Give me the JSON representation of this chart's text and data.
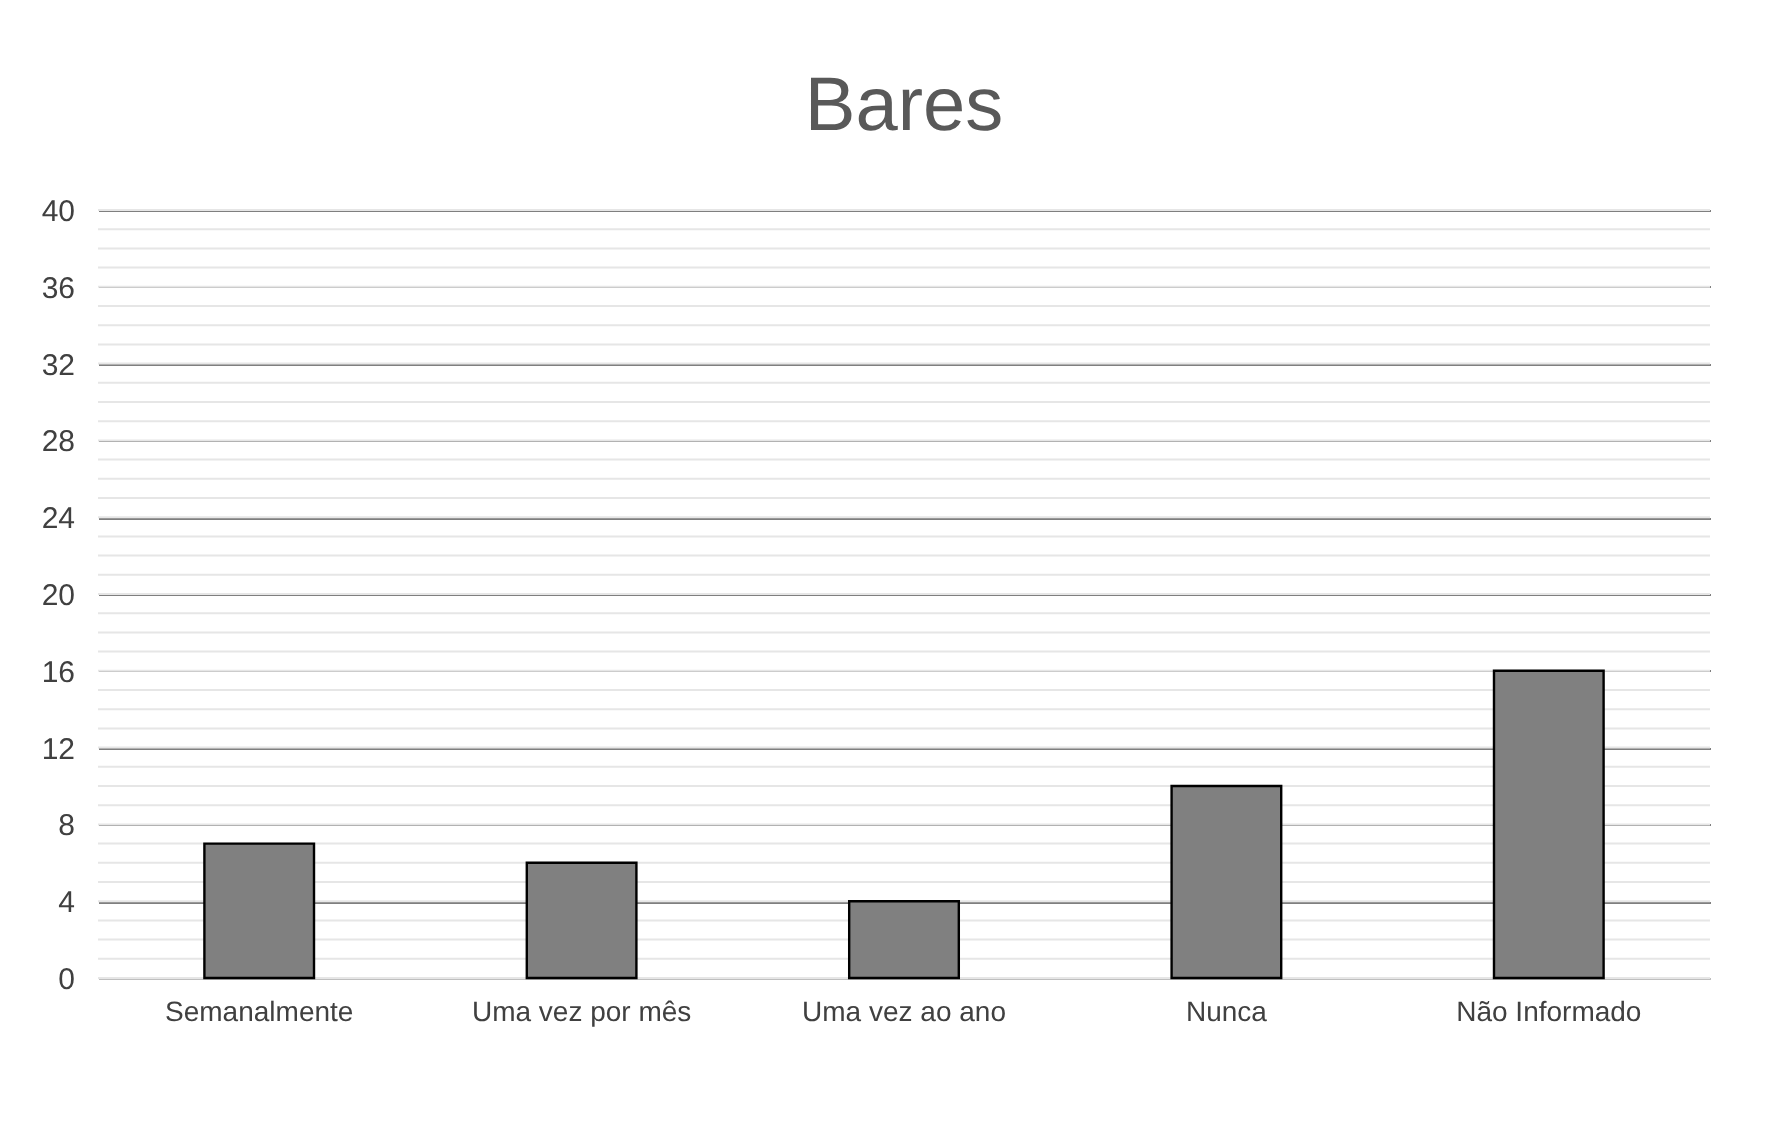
{
  "chart_data": {
    "type": "bar",
    "title": "Bares",
    "categories": [
      "Semanalmente",
      "Uma vez por mês",
      "Uma vez ao ano",
      "Nunca",
      "Não Informado"
    ],
    "values": [
      7,
      6,
      4,
      10,
      16
    ],
    "color": "#808080",
    "ylim": [
      0,
      40
    ],
    "yticks": [
      0,
      4,
      8,
      12,
      16,
      20,
      24,
      28,
      32,
      36,
      40
    ],
    "grid": "y"
  }
}
